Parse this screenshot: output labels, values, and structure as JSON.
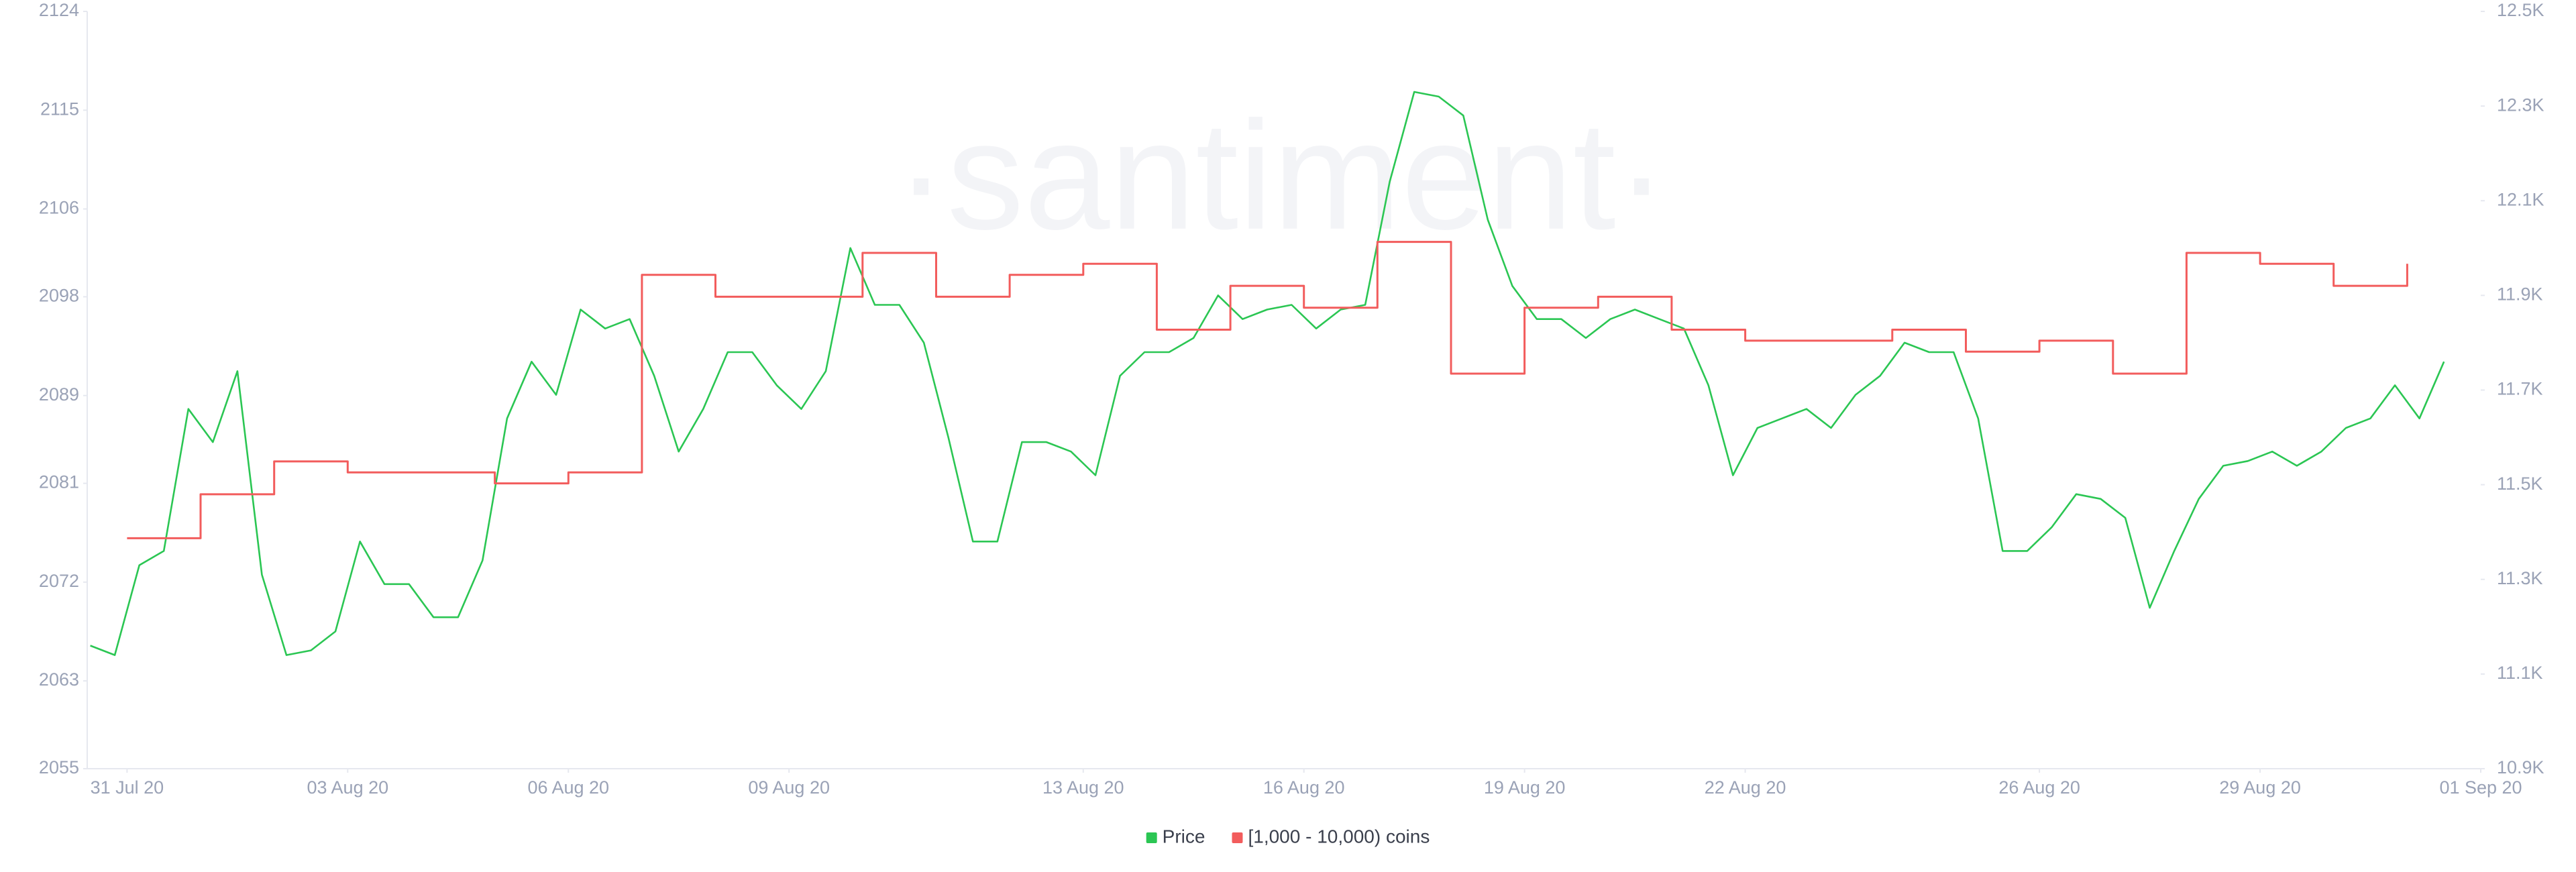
{
  "chart_data": {
    "type": "line",
    "watermark": "·santiment·",
    "xlim": [
      "2020-07-30T11:00",
      "2020-09-01T00:00"
    ],
    "xticks": [
      {
        "value": "2020-07-31",
        "label": "31 Jul 20"
      },
      {
        "value": "2020-08-03",
        "label": "03 Aug 20"
      },
      {
        "value": "2020-08-06",
        "label": "06 Aug 20"
      },
      {
        "value": "2020-08-09",
        "label": "09 Aug 20"
      },
      {
        "value": "2020-08-13",
        "label": "13 Aug 20"
      },
      {
        "value": "2020-08-16",
        "label": "16 Aug 20"
      },
      {
        "value": "2020-08-19",
        "label": "19 Aug 20"
      },
      {
        "value": "2020-08-22",
        "label": "22 Aug 20"
      },
      {
        "value": "2020-08-26",
        "label": "26 Aug 20"
      },
      {
        "value": "2020-08-29",
        "label": "29 Aug 20"
      },
      {
        "value": "2020-09-01",
        "label": "01 Sep 20"
      }
    ],
    "ylim": [
      2055,
      2124
    ],
    "yticks": [
      2055,
      2063,
      2072,
      2081,
      2089,
      2098,
      2106,
      2115,
      2124
    ],
    "y2lim": [
      10900,
      12500
    ],
    "y2ticks": [
      {
        "value": 10900,
        "label": "10.9K"
      },
      {
        "value": 11100,
        "label": "11.1K"
      },
      {
        "value": 11300,
        "label": "11.3K"
      },
      {
        "value": 11500,
        "label": "11.5K"
      },
      {
        "value": 11700,
        "label": "11.7K"
      },
      {
        "value": 11900,
        "label": "11.9K"
      },
      {
        "value": 12100,
        "label": "12.1K"
      },
      {
        "value": 12300,
        "label": "12.3K"
      },
      {
        "value": 12500,
        "label": "12.5K"
      }
    ],
    "legend": "bottom",
    "series": [
      {
        "name": "Price",
        "color": "#2bc653",
        "axis": "y2",
        "step": false,
        "x": [
          "2020-07-30T12:00",
          "2020-07-30T20:00",
          "2020-07-31T04:00",
          "2020-07-31T12:00",
          "2020-07-31T20:00",
          "2020-08-01T04:00",
          "2020-08-01T12:00",
          "2020-08-01T20:00",
          "2020-08-02T04:00",
          "2020-08-02T12:00",
          "2020-08-02T20:00",
          "2020-08-03T04:00",
          "2020-08-03T12:00",
          "2020-08-03T20:00",
          "2020-08-04T04:00",
          "2020-08-04T12:00",
          "2020-08-04T20:00",
          "2020-08-05T04:00",
          "2020-08-05T12:00",
          "2020-08-05T20:00",
          "2020-08-06T04:00",
          "2020-08-06T12:00",
          "2020-08-06T20:00",
          "2020-08-07T04:00",
          "2020-08-07T12:00",
          "2020-08-07T20:00",
          "2020-08-08T04:00",
          "2020-08-08T12:00",
          "2020-08-08T20:00",
          "2020-08-09T04:00",
          "2020-08-09T12:00",
          "2020-08-09T20:00",
          "2020-08-10T04:00",
          "2020-08-10T12:00",
          "2020-08-10T20:00",
          "2020-08-11T04:00",
          "2020-08-11T12:00",
          "2020-08-11T20:00",
          "2020-08-12T04:00",
          "2020-08-12T12:00",
          "2020-08-12T20:00",
          "2020-08-13T04:00",
          "2020-08-13T12:00",
          "2020-08-13T20:00",
          "2020-08-14T04:00",
          "2020-08-14T12:00",
          "2020-08-14T20:00",
          "2020-08-15T04:00",
          "2020-08-15T12:00",
          "2020-08-15T20:00",
          "2020-08-16T04:00",
          "2020-08-16T12:00",
          "2020-08-16T20:00",
          "2020-08-17T04:00",
          "2020-08-17T12:00",
          "2020-08-17T20:00",
          "2020-08-18T04:00",
          "2020-08-18T12:00",
          "2020-08-18T20:00",
          "2020-08-19T04:00",
          "2020-08-19T12:00",
          "2020-08-19T20:00",
          "2020-08-20T04:00",
          "2020-08-20T12:00",
          "2020-08-20T20:00",
          "2020-08-21T04:00",
          "2020-08-21T12:00",
          "2020-08-21T20:00",
          "2020-08-22T04:00",
          "2020-08-22T12:00",
          "2020-08-22T20:00",
          "2020-08-23T04:00",
          "2020-08-23T12:00",
          "2020-08-23T20:00",
          "2020-08-24T04:00",
          "2020-08-24T12:00",
          "2020-08-24T20:00",
          "2020-08-25T04:00",
          "2020-08-25T12:00",
          "2020-08-25T20:00",
          "2020-08-26T04:00",
          "2020-08-26T12:00",
          "2020-08-26T20:00",
          "2020-08-27T04:00",
          "2020-08-27T12:00",
          "2020-08-27T20:00",
          "2020-08-28T04:00",
          "2020-08-28T12:00",
          "2020-08-28T20:00",
          "2020-08-29T04:00",
          "2020-08-29T12:00",
          "2020-08-29T20:00",
          "2020-08-30T04:00",
          "2020-08-30T12:00",
          "2020-08-30T20:00",
          "2020-08-31T04:00",
          "2020-08-31T12:00"
        ],
        "values": [
          11160,
          11140,
          11330,
          11360,
          11660,
          11590,
          11740,
          11310,
          11140,
          11150,
          11190,
          11380,
          11290,
          11290,
          11220,
          11220,
          11340,
          11640,
          11760,
          11690,
          11870,
          11830,
          11850,
          11730,
          11570,
          11660,
          11780,
          11780,
          11710,
          11660,
          11740,
          12000,
          11880,
          11880,
          11800,
          11600,
          11380,
          11380,
          11590,
          11590,
          11570,
          11520,
          11730,
          11780,
          11780,
          11810,
          11900,
          11850,
          11870,
          11880,
          11830,
          11870,
          11880,
          12140,
          12330,
          12320,
          12280,
          12060,
          11920,
          11850,
          11850,
          11810,
          11850,
          11870,
          11850,
          11830,
          11710,
          11520,
          11620,
          11640,
          11660,
          11620,
          11690,
          11730,
          11800,
          11780,
          11780,
          11640,
          11360,
          11360,
          11410,
          11480,
          11470,
          11430,
          11240,
          11360,
          11470,
          11540,
          11550,
          11570,
          11540,
          11570,
          11620,
          11640,
          11710,
          11640,
          11760
        ]
      },
      {
        "name": "[1,000 - 10,000) coins",
        "color": "#f25c5c",
        "axis": "y",
        "step": true,
        "x": [
          "2020-07-31",
          "2020-08-01",
          "2020-08-02",
          "2020-08-03",
          "2020-08-04",
          "2020-08-05",
          "2020-08-06",
          "2020-08-07",
          "2020-08-08",
          "2020-08-09",
          "2020-08-10",
          "2020-08-11",
          "2020-08-12",
          "2020-08-13",
          "2020-08-14",
          "2020-08-15",
          "2020-08-16",
          "2020-08-17",
          "2020-08-18",
          "2020-08-19",
          "2020-08-20",
          "2020-08-21",
          "2020-08-22",
          "2020-08-23",
          "2020-08-24",
          "2020-08-25",
          "2020-08-26",
          "2020-08-27",
          "2020-08-28",
          "2020-08-29",
          "2020-08-30",
          "2020-08-31"
        ],
        "values": [
          2076,
          2080,
          2083,
          2082,
          2082,
          2081,
          2082,
          2100,
          2098,
          2098,
          2102,
          2098,
          2100,
          2101,
          2095,
          2099,
          2097,
          2103,
          2091,
          2097,
          2098,
          2095,
          2094,
          2094,
          2095,
          2093,
          2094,
          2091,
          2102,
          2101,
          2099,
          2101
        ]
      }
    ]
  }
}
